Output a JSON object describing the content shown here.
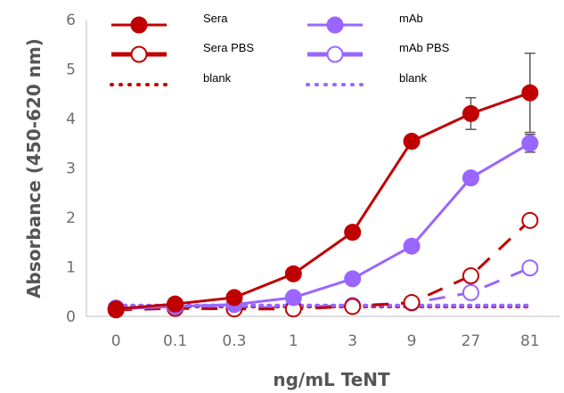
{
  "chart_data": {
    "type": "line",
    "title": "",
    "xlabel": "ng/mL TeNT",
    "ylabel": "Absorbance (450-620 nm)",
    "categories": [
      "0",
      "0.1",
      "0.3",
      "1",
      "3",
      "9",
      "27",
      "81"
    ],
    "ylim": [
      0,
      6
    ],
    "yticks": [
      0,
      1,
      2,
      3,
      4,
      5,
      6
    ],
    "grid": false,
    "legend_position": "top",
    "colors": {
      "sera": "#c00000",
      "mab": "#9966ff"
    },
    "series": [
      {
        "name": "Sera",
        "color_key": "sera",
        "style": "solid",
        "marker": "filled",
        "values": [
          0.15,
          0.25,
          0.38,
          0.86,
          1.7,
          3.54,
          4.1,
          4.52
        ],
        "error": [
          null,
          null,
          null,
          null,
          null,
          null,
          0.32,
          0.8
        ]
      },
      {
        "name": "mAb",
        "color_key": "mab",
        "style": "solid",
        "marker": "filled",
        "values": [
          0.15,
          0.2,
          0.24,
          0.38,
          0.76,
          1.42,
          2.8,
          3.5
        ],
        "error": [
          null,
          null,
          null,
          null,
          null,
          null,
          null,
          0.18
        ]
      },
      {
        "name": "Sera PBS",
        "color_key": "sera",
        "style": "dashed",
        "marker": "open",
        "values": [
          0.13,
          0.16,
          0.15,
          0.15,
          0.2,
          0.28,
          0.82,
          1.94
        ],
        "error": [
          null,
          null,
          null,
          null,
          null,
          null,
          null,
          null
        ]
      },
      {
        "name": "mAb PBS",
        "color_key": "mab",
        "style": "dashed",
        "marker": "open",
        "values": [
          0.17,
          0.17,
          0.17,
          0.19,
          0.22,
          0.27,
          0.48,
          0.98
        ],
        "error": [
          null,
          null,
          null,
          null,
          null,
          null,
          null,
          null
        ]
      },
      {
        "name": "blank",
        "color_key": "sera",
        "style": "dotted",
        "marker": "none",
        "values": [
          0.2,
          0.2,
          0.2,
          0.2,
          0.2,
          0.2,
          0.2,
          0.2
        ],
        "error": [
          null,
          null,
          null,
          null,
          null,
          null,
          null,
          null
        ]
      },
      {
        "name": "blank",
        "color_key": "mab",
        "style": "dotted",
        "marker": "none",
        "values": [
          0.22,
          0.22,
          0.22,
          0.22,
          0.22,
          0.22,
          0.22,
          0.22
        ],
        "error": [
          null,
          null,
          null,
          null,
          null,
          null,
          null,
          null
        ]
      }
    ],
    "legend": [
      {
        "label": "Sera",
        "series_index": 0
      },
      {
        "label": "mAb",
        "series_index": 1
      },
      {
        "label": "Sera PBS",
        "series_index": 2
      },
      {
        "label": "mAb PBS",
        "series_index": 3
      },
      {
        "label": "blank",
        "series_index": 4
      },
      {
        "label": "blank",
        "series_index": 5
      }
    ]
  }
}
